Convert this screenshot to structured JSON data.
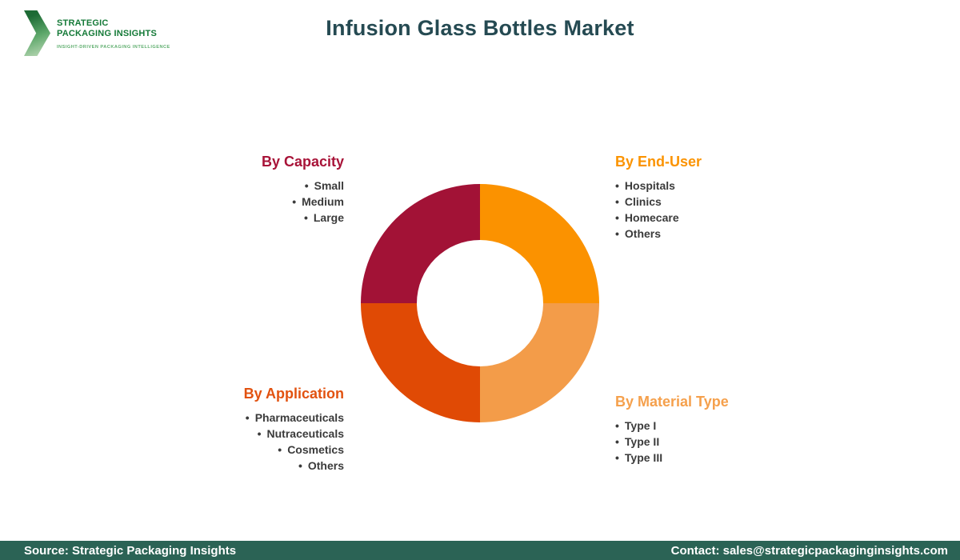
{
  "header": {
    "logo": {
      "line1": "STRATEGIC",
      "line2": "PACKAGING INSIGHTS",
      "tagline": "INSIGHT-DRIVEN PACKAGING INTELLIGENCE",
      "brand_green": "#157A38"
    },
    "title": "Infusion Glass Bottles Market",
    "title_color": "#254A52"
  },
  "chart_data": {
    "type": "pie",
    "donut": true,
    "title": "Infusion Glass Bottles Market segmentation",
    "inner_radius_ratio": 0.53,
    "legend_position": "around-chart",
    "slices": [
      {
        "label": "By Capacity",
        "value": 25,
        "color": "#A21236",
        "position": "top-left"
      },
      {
        "label": "By End-User",
        "value": 25,
        "color": "#FB9200",
        "position": "top-right"
      },
      {
        "label": "By Material Type",
        "value": 25,
        "color": "#F39C49",
        "position": "bottom-right"
      },
      {
        "label": "By Application",
        "value": 25,
        "color": "#E04A05",
        "position": "bottom-left"
      }
    ]
  },
  "segments": [
    {
      "id": "capacity",
      "heading": "By Capacity",
      "heading_color": "#A81338",
      "align": "right",
      "items": [
        "Small",
        "Medium",
        "Large"
      ]
    },
    {
      "id": "end-user",
      "heading": "By End-User",
      "heading_color": "#FB9300",
      "align": "left",
      "items": [
        "Hospitals",
        "Clinics",
        "Homecare",
        "Others"
      ]
    },
    {
      "id": "application",
      "heading": "By Application",
      "heading_color": "#E25210",
      "align": "right",
      "items": [
        "Pharmaceuticals",
        "Nutraceuticals",
        "Cosmetics",
        "Others"
      ]
    },
    {
      "id": "material-type",
      "heading": "By Material Type",
      "heading_color": "#F5A04C",
      "align": "left",
      "items": [
        "Type I",
        "Type II",
        "Type III"
      ]
    }
  ],
  "footer": {
    "source": "Source: Strategic Packaging Insights",
    "contact": "Contact: sales@strategicpackaginginsights.com",
    "background": "#2B6355"
  }
}
